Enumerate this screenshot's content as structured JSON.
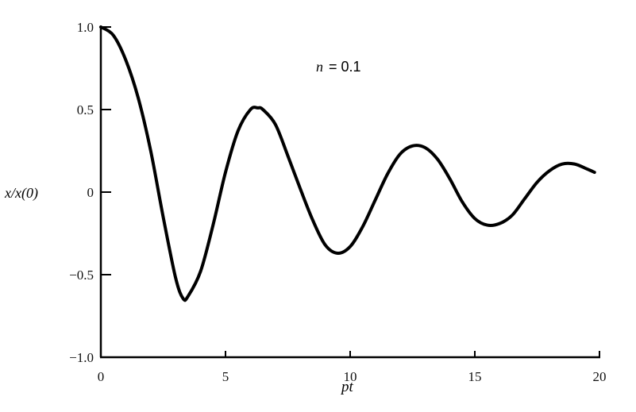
{
  "chart_data": {
    "type": "line",
    "title": "",
    "annotation": "n = 0.1",
    "annotation_parts": {
      "var": "n",
      "rest": " = 0.1"
    },
    "xlabel": "pt",
    "ylabel": "x/x(0)",
    "xlim": [
      0,
      20
    ],
    "ylim": [
      -1.0,
      1.0
    ],
    "xticks": [
      0,
      5,
      10,
      15,
      20
    ],
    "xtick_labels": [
      "0",
      "5",
      "10",
      "15",
      "20"
    ],
    "yticks": [
      1.0,
      0.5,
      0,
      -0.5,
      -1.0
    ],
    "ytick_labels": [
      "1.0",
      "0.5",
      "0",
      "−0.5",
      "−1.0"
    ],
    "grid": false,
    "line_color": "#000000",
    "series": [
      {
        "x": [
          0,
          0.5,
          1,
          1.5,
          2,
          2.5,
          3,
          3.3,
          3.5,
          4,
          4.5,
          5,
          5.5,
          6,
          6.3,
          6.5,
          7,
          7.5,
          8,
          8.5,
          9,
          9.5,
          10,
          10.5,
          11,
          11.5,
          12,
          12.5,
          13,
          13.5,
          14,
          14.5,
          15,
          15.5,
          16,
          16.5,
          17,
          17.5,
          18,
          18.5,
          19,
          19.5,
          19.8
        ],
        "y": [
          1.0,
          0.95,
          0.8,
          0.57,
          0.25,
          -0.15,
          -0.52,
          -0.645,
          -0.63,
          -0.48,
          -0.2,
          0.12,
          0.37,
          0.5,
          0.51,
          0.5,
          0.41,
          0.22,
          0.02,
          -0.17,
          -0.32,
          -0.37,
          -0.33,
          -0.21,
          -0.05,
          0.11,
          0.23,
          0.28,
          0.27,
          0.2,
          0.08,
          -0.06,
          -0.16,
          -0.2,
          -0.19,
          -0.14,
          -0.04,
          0.06,
          0.13,
          0.17,
          0.17,
          0.14,
          0.12
        ]
      }
    ]
  }
}
